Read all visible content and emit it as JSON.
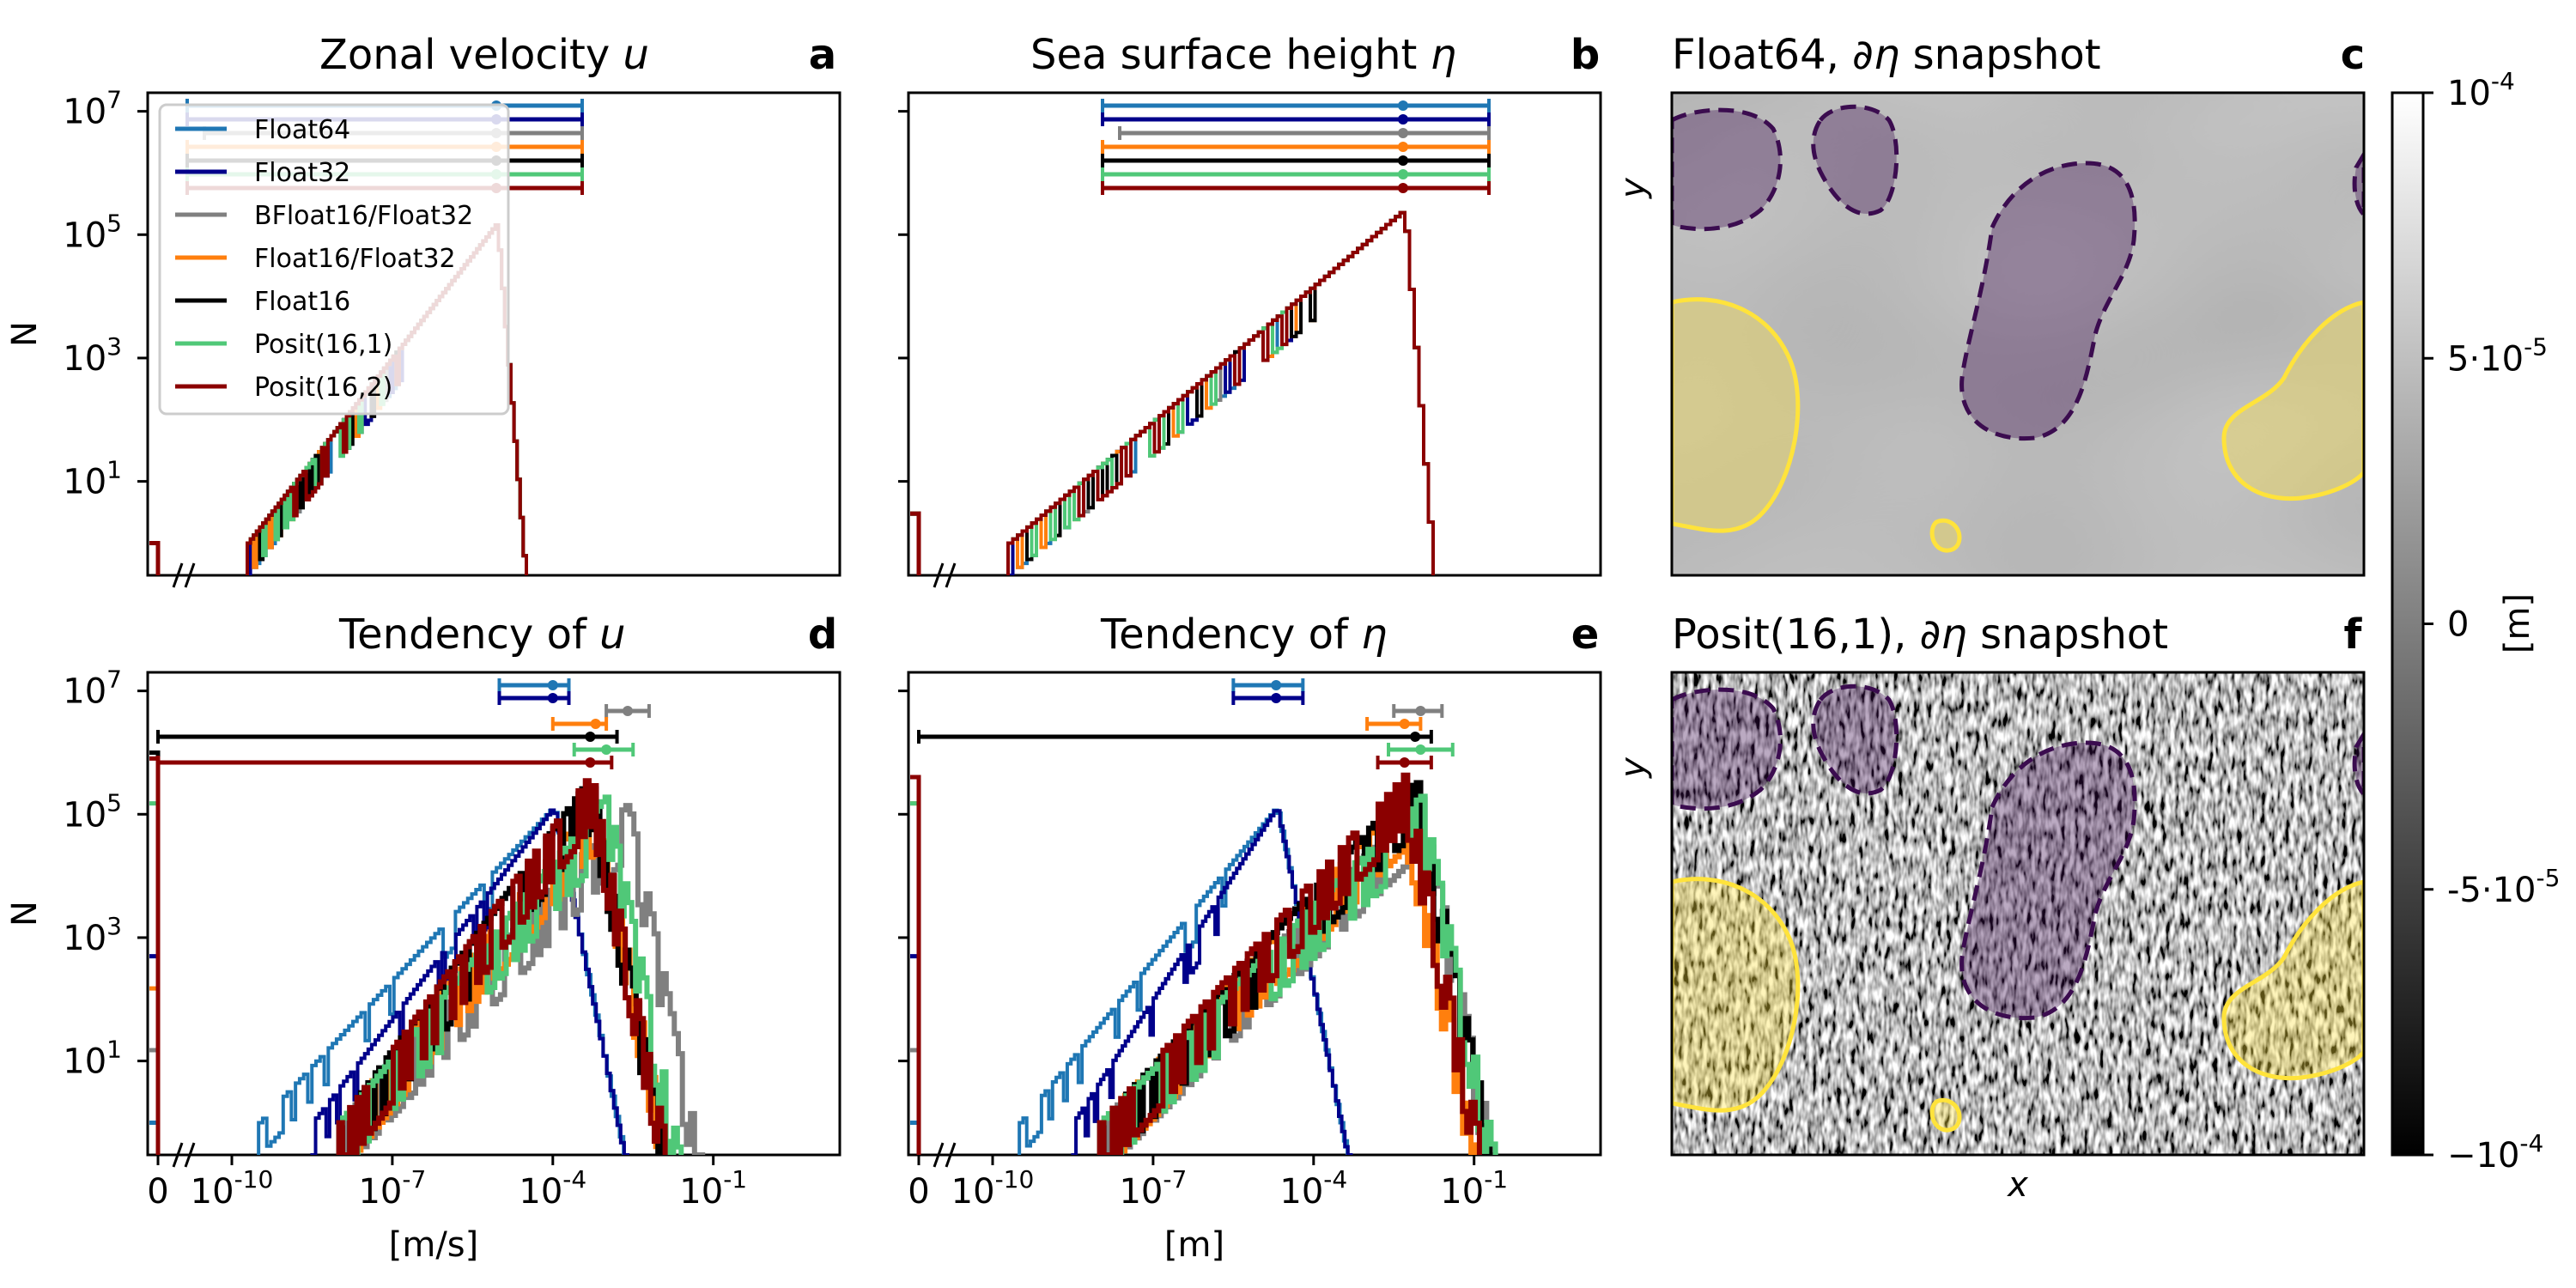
{
  "chart_data": [
    {
      "panel": "a",
      "type": "line",
      "title_text": "Zonal velocity ",
      "title_sym": "u",
      "ylabel": "N",
      "xlabel": "",
      "yscale": "log",
      "ylim": [
        0.3,
        20000000
      ],
      "yticks": [
        "10^7",
        "10^5",
        "10^3",
        "10^1"
      ],
      "series": [
        {
          "name": "Float64",
          "color": "#1f77b4",
          "peak": 150000,
          "range_left": -8.2,
          "median": -4.6,
          "range_right": -3.6,
          "zero_bin": 1
        },
        {
          "name": "Float32",
          "color": "#00008b",
          "peak": 150000,
          "range_left": -8.2,
          "median": -4.6,
          "range_right": -3.6,
          "zero_bin": 1
        },
        {
          "name": "BFloat16/Float32",
          "color": "#808080",
          "peak": 150000,
          "range_left": -8.0,
          "median": -4.6,
          "range_right": -3.6,
          "zero_bin": 1
        },
        {
          "name": "Float16/Float32",
          "color": "#ff7f0e",
          "peak": 150000,
          "range_left": -8.2,
          "median": -4.6,
          "range_right": -3.6,
          "zero_bin": 1
        },
        {
          "name": "Float16",
          "color": "#000000",
          "peak": 150000,
          "range_left": -8.2,
          "median": -4.6,
          "range_right": -3.6,
          "zero_bin": 1
        },
        {
          "name": "Posit(16,1)",
          "color": "#50c878",
          "peak": 150000,
          "range_left": -8.2,
          "median": -4.6,
          "range_right": -3.6,
          "zero_bin": 1
        },
        {
          "name": "Posit(16,2)",
          "color": "#8b0000",
          "peak": 150000,
          "range_left": -8.2,
          "median": -4.6,
          "range_right": -3.6,
          "zero_bin": 1
        }
      ]
    },
    {
      "panel": "b",
      "type": "line",
      "title_text": "Sea surface height ",
      "title_sym": "η",
      "ylabel": "",
      "xlabel": "",
      "yscale": "log",
      "ylim": [
        0.3,
        20000000
      ],
      "series": [
        {
          "name": "Float64",
          "color": "#1f77b4",
          "peak": 250000,
          "range_left": -6.4,
          "median": -2.9,
          "range_right": -1.9,
          "zero_bin": 3
        },
        {
          "name": "Float32",
          "color": "#00008b",
          "peak": 250000,
          "range_left": -6.4,
          "median": -2.9,
          "range_right": -1.9,
          "zero_bin": 3
        },
        {
          "name": "BFloat16/Float32",
          "color": "#808080",
          "peak": 250000,
          "range_left": -6.2,
          "median": -2.9,
          "range_right": -1.9,
          "zero_bin": 3
        },
        {
          "name": "Float16/Float32",
          "color": "#ff7f0e",
          "peak": 250000,
          "range_left": -6.4,
          "median": -2.9,
          "range_right": -1.9,
          "zero_bin": 3
        },
        {
          "name": "Float16",
          "color": "#000000",
          "peak": 250000,
          "range_left": -6.4,
          "median": -2.9,
          "range_right": -1.9,
          "zero_bin": 3
        },
        {
          "name": "Posit(16,1)",
          "color": "#50c878",
          "peak": 250000,
          "range_left": -6.4,
          "median": -2.9,
          "range_right": -1.9,
          "zero_bin": 3
        },
        {
          "name": "Posit(16,2)",
          "color": "#8b0000",
          "peak": 250000,
          "range_left": -6.4,
          "median": -2.9,
          "range_right": -1.9,
          "zero_bin": 3
        }
      ]
    },
    {
      "panel": "d",
      "type": "line",
      "title_text": "Tendency of ",
      "title_sym": "u",
      "ylabel": "N",
      "xlabel": "[m/s]",
      "yscale": "log",
      "xscale": "symlog",
      "ylim": [
        0.3,
        20000000
      ],
      "yticks": [
        "10^7",
        "10^5",
        "10^3",
        "10^1"
      ],
      "xticks": [
        "0",
        "10^-10",
        "10^-7",
        "10^-4",
        "10^-1"
      ],
      "series": [
        {
          "name": "Float64",
          "color": "#1f77b4",
          "peak": 130000,
          "range_left": -5.0,
          "median": -4.0,
          "range_right": -3.7,
          "zero_bin": 1
        },
        {
          "name": "Float32",
          "color": "#00008b",
          "peak": 130000,
          "range_left": -5.0,
          "median": -4.0,
          "range_right": -3.7,
          "zero_bin": 500
        },
        {
          "name": "BFloat16/Float32",
          "color": "#808080",
          "peak": 150000,
          "range_left": -3.0,
          "median": -2.6,
          "range_right": -2.2,
          "zero_bin": 15
        },
        {
          "name": "Float16/Float32",
          "color": "#ff7f0e",
          "peak": 180000,
          "range_left": -4.0,
          "median": -3.2,
          "range_right": -3.0,
          "zero_bin": 150
        },
        {
          "name": "Float16",
          "color": "#000000",
          "peak": 400000,
          "range_left": null,
          "median": -3.3,
          "range_right": -2.8,
          "zero_bin": 1000000
        },
        {
          "name": "Posit(16,1)",
          "color": "#50c878",
          "peak": 200000,
          "range_left": -3.6,
          "median": -3.0,
          "range_right": -2.5,
          "zero_bin": 150000
        },
        {
          "name": "Posit(16,2)",
          "color": "#8b0000",
          "peak": 450000,
          "range_left": null,
          "median": -3.3,
          "range_right": -2.9,
          "zero_bin": 800000
        }
      ]
    },
    {
      "panel": "e",
      "type": "line",
      "title_text": "Tendency of ",
      "title_sym": "η",
      "ylabel": "",
      "xlabel": "[m]",
      "yscale": "log",
      "xscale": "symlog",
      "ylim": [
        0.3,
        20000000
      ],
      "xticks": [
        "0",
        "10^-10",
        "10^-7",
        "10^-4",
        "10^-1"
      ],
      "series": [
        {
          "name": "Float64",
          "color": "#1f77b4",
          "peak": 130000,
          "range_left": -5.5,
          "median": -4.7,
          "range_right": -4.2,
          "zero_bin": 1
        },
        {
          "name": "Float32",
          "color": "#00008b",
          "peak": 130000,
          "range_left": -5.5,
          "median": -4.7,
          "range_right": -4.2,
          "zero_bin": 500
        },
        {
          "name": "BFloat16/Float32",
          "color": "#808080",
          "peak": 180000,
          "range_left": -2.5,
          "median": -2.0,
          "range_right": -1.6,
          "zero_bin": 15
        },
        {
          "name": "Float16/Float32",
          "color": "#ff7f0e",
          "peak": 200000,
          "range_left": -3.0,
          "median": -2.3,
          "range_right": -2.0,
          "zero_bin": 150000
        },
        {
          "name": "Float16",
          "color": "#000000",
          "peak": 400000,
          "range_left": null,
          "median": -2.1,
          "range_right": -1.8,
          "zero_bin": 400000
        },
        {
          "name": "Posit(16,1)",
          "color": "#50c878",
          "peak": 200000,
          "range_left": -2.6,
          "median": -2.0,
          "range_right": -1.4,
          "zero_bin": 150000
        },
        {
          "name": "Posit(16,2)",
          "color": "#8b0000",
          "peak": 450000,
          "range_left": -2.8,
          "median": -2.3,
          "range_right": -1.8,
          "zero_bin": 400000
        }
      ]
    },
    {
      "panel": "c",
      "type": "heatmap",
      "title_text": "Float64, ",
      "title_sym": "∂η",
      "title_suffix": " snapshot",
      "ylabel": "y",
      "xlabel": ""
    },
    {
      "panel": "f",
      "type": "heatmap",
      "title_text": "Posit(16,1), ",
      "title_sym": "∂η",
      "title_suffix": " snapshot",
      "ylabel": "y",
      "xlabel": "x"
    }
  ],
  "colorbar": {
    "label": "[m]",
    "range": [
      -0.0001,
      0.0001
    ],
    "ticks": [
      {
        "label": "10^-4",
        "value": 0.0001
      },
      {
        "label": "5·10^-5",
        "value": 5e-05
      },
      {
        "label": "0",
        "value": 0
      },
      {
        "label": "-5·10^-5",
        "value": -5e-05
      },
      {
        "label": "−10^-4",
        "value": -0.0001
      }
    ]
  },
  "contours": {
    "negative_color": "#3b0c4f",
    "positive_color": "#ffe33b"
  }
}
